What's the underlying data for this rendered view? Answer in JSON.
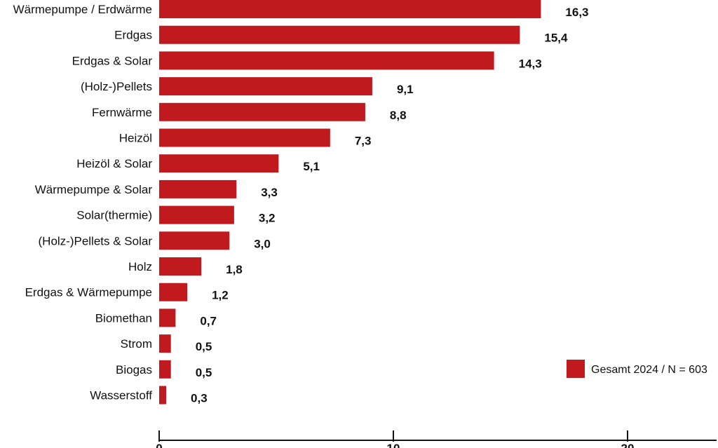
{
  "chart_data": {
    "type": "bar",
    "orientation": "horizontal",
    "categories": [
      "Wärmepumpe / Erdwärme",
      "Erdgas",
      "Erdgas & Solar",
      "(Holz-)Pellets",
      "Fernwärme",
      "Heizöl",
      "Heizöl & Solar",
      "Wärmepumpe & Solar",
      "Solar(thermie)",
      "(Holz-)Pellets & Solar",
      "Holz",
      "Erdgas & Wärmepumpe",
      "Biomethan",
      "Strom",
      "Biogas",
      "Wasserstoff"
    ],
    "values": [
      16.3,
      15.4,
      14.3,
      9.1,
      8.8,
      7.3,
      5.1,
      3.3,
      3.2,
      3.0,
      1.8,
      1.2,
      0.7,
      0.5,
      0.5,
      0.3
    ],
    "value_labels": [
      "16,3",
      "15,4",
      "14,3",
      "9,1",
      "8,8",
      "7,3",
      "5,1",
      "3,3",
      "3,2",
      "3,0",
      "1,8",
      "1,2",
      "0,7",
      "0,5",
      "0,5",
      "0,3"
    ],
    "series": [
      {
        "name": "Gesamt 2024 / N = 603",
        "color": "#c0191e"
      }
    ],
    "x_ticks": [
      0,
      10,
      20
    ],
    "x_tick_labels": [
      "0",
      "10",
      "20"
    ],
    "xlim": [
      0,
      23.8
    ],
    "title": "",
    "xlabel": "",
    "ylabel": "",
    "grid": false,
    "legend_position": "bottom-right"
  }
}
